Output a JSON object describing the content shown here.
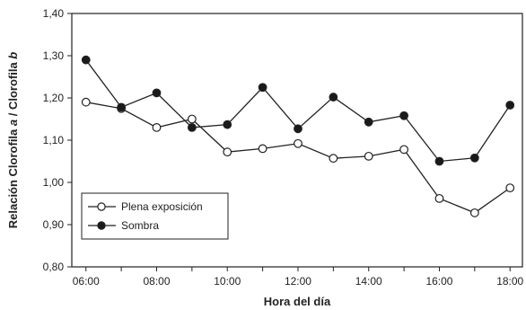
{
  "chart_data": {
    "type": "line",
    "xlabel": "Hora del día",
    "ylabel_parts": [
      "Relación Clorofila ",
      "a",
      " / Clorofila ",
      "b"
    ],
    "ylim": [
      0.8,
      1.4
    ],
    "yticks": [
      "0,80",
      "0,90",
      "1,00",
      "1,10",
      "1,20",
      "1,30",
      "1,40"
    ],
    "xticks": [
      "06:00",
      "08:00",
      "10:00",
      "12:00",
      "14:00",
      "16:00",
      "18:00"
    ],
    "x_hours": [
      6,
      7,
      8,
      9,
      10,
      11,
      12,
      13,
      14,
      15,
      16,
      17,
      18
    ],
    "legend_position": "bottom-left",
    "series": [
      {
        "name": "Plena exposición",
        "marker": "open-circle",
        "values": [
          1.19,
          1.175,
          1.13,
          1.15,
          1.072,
          1.08,
          1.092,
          1.057,
          1.062,
          1.078,
          0.962,
          0.928,
          0.987
        ]
      },
      {
        "name": "Sombra",
        "marker": "filled-circle",
        "values": [
          1.29,
          1.178,
          1.212,
          1.13,
          1.137,
          1.225,
          1.127,
          1.202,
          1.143,
          1.158,
          1.05,
          1.058,
          1.183
        ]
      }
    ]
  }
}
